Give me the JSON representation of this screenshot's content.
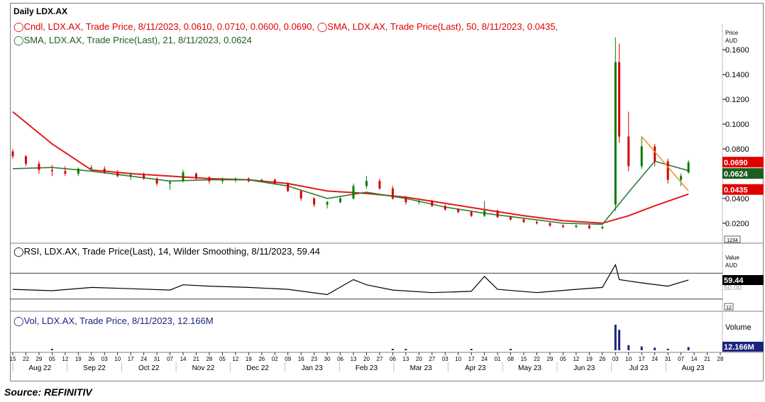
{
  "chart_title": "Daily LDX.AX",
  "source": "Source: REFINITIV",
  "legend": {
    "candle": "Cndl, LDX.AX, Trade Price, 8/11/2023, 0.0610, 0.0710, 0.0600, 0.0690,",
    "sma50": "SMA, LDX.AX, Trade Price(Last),   50, 8/11/2023, 0.0435,",
    "sma21": "SMA, LDX.AX, Trade Price(Last),   21, 8/11/2023, 0.0624",
    "rsi": "RSI, LDX.AX, Trade Price(Last),   14, Wilder Smoothing, 8/11/2023, 59.44",
    "vol": "Vol, LDX.AX, Trade Price, 8/11/2023, 12.166M"
  },
  "colors": {
    "candle_up": "#007a00",
    "candle_down": "#d40000",
    "sma50": "#e31a1c",
    "sma21": "#2e7d32",
    "rsi_line": "#000000",
    "volume": "#1a237e",
    "trend": "#f28c28",
    "legend_red": "#e00000",
    "legend_green": "#1b5e20",
    "legend_blue": "#1a237e"
  },
  "axes": {
    "price_unit": "Price\nAUD",
    "price_ticks": [
      "0.1600",
      "0.1400",
      "0.1200",
      "0.1000",
      "0.0800",
      "0.0400",
      "0.0200"
    ],
    "rsi_unit": "Value\nAUD",
    "rsi_ticks_hidden": "50.00",
    "rsi_scale_label": "12",
    "vol_unit": "Volume",
    "price_scale_label": "1234",
    "day_ticks": [
      "15",
      "22",
      "29",
      "05",
      "12",
      "19",
      "26",
      "03",
      "10",
      "17",
      "24",
      "31",
      "07",
      "14",
      "21",
      "28",
      "05",
      "12",
      "19",
      "26",
      "02",
      "09",
      "16",
      "23",
      "30",
      "06",
      "13",
      "20",
      "27",
      "06",
      "13",
      "20",
      "27",
      "03",
      "10",
      "17",
      "24",
      "01",
      "08",
      "15",
      "22",
      "29",
      "05",
      "12",
      "19",
      "26",
      "03",
      "10",
      "17",
      "24",
      "31",
      "07",
      "14",
      "21",
      "28"
    ],
    "month_labels": [
      "Aug 22",
      "Sep 22",
      "Oct 22",
      "Nov 22",
      "Dec 22",
      "Jan 23",
      "Feb 23",
      "Mar 23",
      "Apr 23",
      "May 23",
      "Jun 23",
      "Jul 23",
      "Aug 23"
    ]
  },
  "badges": {
    "close": "0.0690",
    "sma21": "0.0624",
    "sma50": "0.0435",
    "rsi": "59.44",
    "vol": "12.166M"
  },
  "chart_data": [
    {
      "type": "candlestick",
      "title": "Daily LDX.AX",
      "ylabel": "Price AUD",
      "ylim": [
        0.005,
        0.175
      ],
      "x_range": [
        "2022-08-15",
        "2023-08-28"
      ],
      "candles": [
        {
          "date": "2022-08-15",
          "o": 0.078,
          "h": 0.08,
          "l": 0.072,
          "c": 0.074
        },
        {
          "date": "2022-08-22",
          "o": 0.074,
          "h": 0.075,
          "l": 0.066,
          "c": 0.068
        },
        {
          "date": "2022-08-29",
          "o": 0.068,
          "h": 0.07,
          "l": 0.06,
          "c": 0.063
        },
        {
          "date": "2022-09-05",
          "o": 0.063,
          "h": 0.067,
          "l": 0.058,
          "c": 0.062
        },
        {
          "date": "2022-09-12",
          "o": 0.062,
          "h": 0.066,
          "l": 0.058,
          "c": 0.06
        },
        {
          "date": "2022-09-19",
          "o": 0.06,
          "h": 0.065,
          "l": 0.058,
          "c": 0.064
        },
        {
          "date": "2022-09-26",
          "o": 0.064,
          "h": 0.067,
          "l": 0.062,
          "c": 0.065
        },
        {
          "date": "2022-10-03",
          "o": 0.064,
          "h": 0.066,
          "l": 0.06,
          "c": 0.061
        },
        {
          "date": "2022-10-10",
          "o": 0.061,
          "h": 0.063,
          "l": 0.057,
          "c": 0.058
        },
        {
          "date": "2022-10-17",
          "o": 0.058,
          "h": 0.061,
          "l": 0.055,
          "c": 0.059
        },
        {
          "date": "2022-10-24",
          "o": 0.059,
          "h": 0.061,
          "l": 0.055,
          "c": 0.056
        },
        {
          "date": "2022-10-31",
          "o": 0.056,
          "h": 0.057,
          "l": 0.05,
          "c": 0.052
        },
        {
          "date": "2022-11-07",
          "o": 0.052,
          "h": 0.055,
          "l": 0.047,
          "c": 0.053
        },
        {
          "date": "2022-11-14",
          "o": 0.054,
          "h": 0.063,
          "l": 0.053,
          "c": 0.061
        },
        {
          "date": "2022-11-21",
          "o": 0.06,
          "h": 0.061,
          "l": 0.055,
          "c": 0.057
        },
        {
          "date": "2022-11-28",
          "o": 0.057,
          "h": 0.058,
          "l": 0.052,
          "c": 0.054
        },
        {
          "date": "2022-12-05",
          "o": 0.054,
          "h": 0.057,
          "l": 0.052,
          "c": 0.055
        },
        {
          "date": "2022-12-12",
          "o": 0.055,
          "h": 0.057,
          "l": 0.053,
          "c": 0.056
        },
        {
          "date": "2022-12-19",
          "o": 0.056,
          "h": 0.057,
          "l": 0.053,
          "c": 0.054
        },
        {
          "date": "2022-12-26",
          "o": 0.054,
          "h": 0.056,
          "l": 0.053,
          "c": 0.055
        },
        {
          "date": "2023-01-02",
          "o": 0.055,
          "h": 0.056,
          "l": 0.051,
          "c": 0.052
        },
        {
          "date": "2023-01-09",
          "o": 0.052,
          "h": 0.053,
          "l": 0.045,
          "c": 0.046
        },
        {
          "date": "2023-01-16",
          "o": 0.046,
          "h": 0.047,
          "l": 0.038,
          "c": 0.04
        },
        {
          "date": "2023-01-23",
          "o": 0.04,
          "h": 0.041,
          "l": 0.033,
          "c": 0.035
        },
        {
          "date": "2023-01-30",
          "o": 0.035,
          "h": 0.038,
          "l": 0.032,
          "c": 0.037
        },
        {
          "date": "2023-02-06",
          "o": 0.037,
          "h": 0.042,
          "l": 0.036,
          "c": 0.04
        },
        {
          "date": "2023-02-13",
          "o": 0.04,
          "h": 0.052,
          "l": 0.039,
          "c": 0.05
        },
        {
          "date": "2023-02-20",
          "o": 0.05,
          "h": 0.058,
          "l": 0.048,
          "c": 0.054
        },
        {
          "date": "2023-02-27",
          "o": 0.054,
          "h": 0.056,
          "l": 0.047,
          "c": 0.048
        },
        {
          "date": "2023-03-06",
          "o": 0.048,
          "h": 0.05,
          "l": 0.039,
          "c": 0.04
        },
        {
          "date": "2023-03-13",
          "o": 0.04,
          "h": 0.042,
          "l": 0.035,
          "c": 0.037
        },
        {
          "date": "2023-03-20",
          "o": 0.037,
          "h": 0.04,
          "l": 0.035,
          "c": 0.038
        },
        {
          "date": "2023-03-27",
          "o": 0.038,
          "h": 0.039,
          "l": 0.033,
          "c": 0.034
        },
        {
          "date": "2023-04-03",
          "o": 0.034,
          "h": 0.035,
          "l": 0.03,
          "c": 0.031
        },
        {
          "date": "2023-04-10",
          "o": 0.031,
          "h": 0.032,
          "l": 0.028,
          "c": 0.029
        },
        {
          "date": "2023-04-17",
          "o": 0.029,
          "h": 0.03,
          "l": 0.025,
          "c": 0.026
        },
        {
          "date": "2023-04-24",
          "o": 0.026,
          "h": 0.038,
          "l": 0.025,
          "c": 0.03
        },
        {
          "date": "2023-05-01",
          "o": 0.03,
          "h": 0.031,
          "l": 0.024,
          "c": 0.025
        },
        {
          "date": "2023-05-08",
          "o": 0.025,
          "h": 0.026,
          "l": 0.022,
          "c": 0.023
        },
        {
          "date": "2023-05-15",
          "o": 0.023,
          "h": 0.024,
          "l": 0.02,
          "c": 0.021
        },
        {
          "date": "2023-05-22",
          "o": 0.021,
          "h": 0.022,
          "l": 0.019,
          "c": 0.02
        },
        {
          "date": "2023-05-29",
          "o": 0.02,
          "h": 0.021,
          "l": 0.017,
          "c": 0.018
        },
        {
          "date": "2023-06-05",
          "o": 0.018,
          "h": 0.019,
          "l": 0.016,
          "c": 0.017
        },
        {
          "date": "2023-06-12",
          "o": 0.017,
          "h": 0.019,
          "l": 0.016,
          "c": 0.018
        },
        {
          "date": "2023-06-19",
          "o": 0.018,
          "h": 0.019,
          "l": 0.015,
          "c": 0.016
        },
        {
          "date": "2023-06-26",
          "o": 0.016,
          "h": 0.018,
          "l": 0.015,
          "c": 0.017
        },
        {
          "date": "2023-07-03",
          "o": 0.035,
          "h": 0.17,
          "l": 0.03,
          "c": 0.15
        },
        {
          "date": "2023-07-05",
          "o": 0.15,
          "h": 0.165,
          "l": 0.085,
          "c": 0.09
        },
        {
          "date": "2023-07-10",
          "o": 0.09,
          "h": 0.11,
          "l": 0.062,
          "c": 0.066
        },
        {
          "date": "2023-07-17",
          "o": 0.066,
          "h": 0.09,
          "l": 0.064,
          "c": 0.082
        },
        {
          "date": "2023-07-24",
          "o": 0.082,
          "h": 0.084,
          "l": 0.066,
          "c": 0.07
        },
        {
          "date": "2023-07-31",
          "o": 0.07,
          "h": 0.072,
          "l": 0.052,
          "c": 0.055
        },
        {
          "date": "2023-08-07",
          "o": 0.055,
          "h": 0.06,
          "l": 0.05,
          "c": 0.058
        },
        {
          "date": "2023-08-11",
          "o": 0.061,
          "h": 0.071,
          "l": 0.06,
          "c": 0.069
        }
      ],
      "sma50": {
        "dates": [
          "2022-08-15",
          "2022-09-05",
          "2022-09-26",
          "2022-10-17",
          "2022-11-07",
          "2022-11-28",
          "2022-12-19",
          "2023-01-09",
          "2023-01-30",
          "2023-02-20",
          "2023-03-13",
          "2023-04-03",
          "2023-04-24",
          "2023-05-15",
          "2023-06-05",
          "2023-06-26",
          "2023-07-10",
          "2023-07-24",
          "2023-08-11"
        ],
        "values": [
          0.11,
          0.084,
          0.063,
          0.06,
          0.058,
          0.056,
          0.055,
          0.052,
          0.046,
          0.044,
          0.041,
          0.036,
          0.031,
          0.026,
          0.022,
          0.02,
          0.026,
          0.034,
          0.0435
        ]
      },
      "sma21": {
        "dates": [
          "2022-08-15",
          "2022-09-05",
          "2022-09-26",
          "2022-10-17",
          "2022-11-07",
          "2022-11-28",
          "2022-12-19",
          "2023-01-09",
          "2023-01-30",
          "2023-02-20",
          "2023-03-13",
          "2023-04-03",
          "2023-04-24",
          "2023-05-15",
          "2023-06-05",
          "2023-06-26",
          "2023-07-10",
          "2023-07-24",
          "2023-08-11"
        ],
        "values": [
          0.064,
          0.065,
          0.062,
          0.058,
          0.054,
          0.055,
          0.055,
          0.05,
          0.04,
          0.045,
          0.04,
          0.033,
          0.028,
          0.024,
          0.02,
          0.019,
          0.045,
          0.07,
          0.0624
        ]
      },
      "trendline": {
        "start": {
          "date": "2023-07-17",
          "value": 0.09
        },
        "end": {
          "date": "2023-08-11",
          "value": 0.046
        }
      },
      "last_close": 0.069
    },
    {
      "type": "line",
      "title": "RSI",
      "ylabel": "Value AUD",
      "ylim": [
        20,
        90
      ],
      "guides": [
        70,
        30
      ],
      "series": [
        {
          "name": "RSI, LDX.AX, Trade Price(Last), 14, Wilder Smoothing",
          "dates": [
            "2022-08-15",
            "2022-09-05",
            "2022-09-26",
            "2022-10-17",
            "2022-11-07",
            "2022-11-14",
            "2022-11-28",
            "2022-12-19",
            "2023-01-09",
            "2023-01-30",
            "2023-02-13",
            "2023-02-20",
            "2023-03-06",
            "2023-03-27",
            "2023-04-17",
            "2023-04-24",
            "2023-05-01",
            "2023-05-22",
            "2023-06-12",
            "2023-06-26",
            "2023-07-03",
            "2023-07-05",
            "2023-07-17",
            "2023-07-31",
            "2023-08-11"
          ],
          "values": [
            45,
            43,
            48,
            46,
            44,
            52,
            50,
            48,
            45,
            37,
            60,
            52,
            44,
            40,
            42,
            65,
            45,
            40,
            45,
            48,
            83,
            60,
            55,
            50,
            59.44
          ]
        }
      ],
      "last_value": 59.44
    },
    {
      "type": "bar",
      "title": "Vol",
      "ylabel": "Volume",
      "dates": [
        "2022-09-05",
        "2023-03-06",
        "2023-03-13",
        "2023-04-17",
        "2023-05-08",
        "2023-07-03",
        "2023-07-05",
        "2023-07-10",
        "2023-07-17",
        "2023-07-24",
        "2023-07-31",
        "2023-08-11"
      ],
      "values": [
        2,
        2,
        3,
        2,
        2,
        100,
        80,
        20,
        15,
        10,
        6,
        12.166
      ],
      "value_unit": "M",
      "last_value": "12.166M"
    }
  ]
}
